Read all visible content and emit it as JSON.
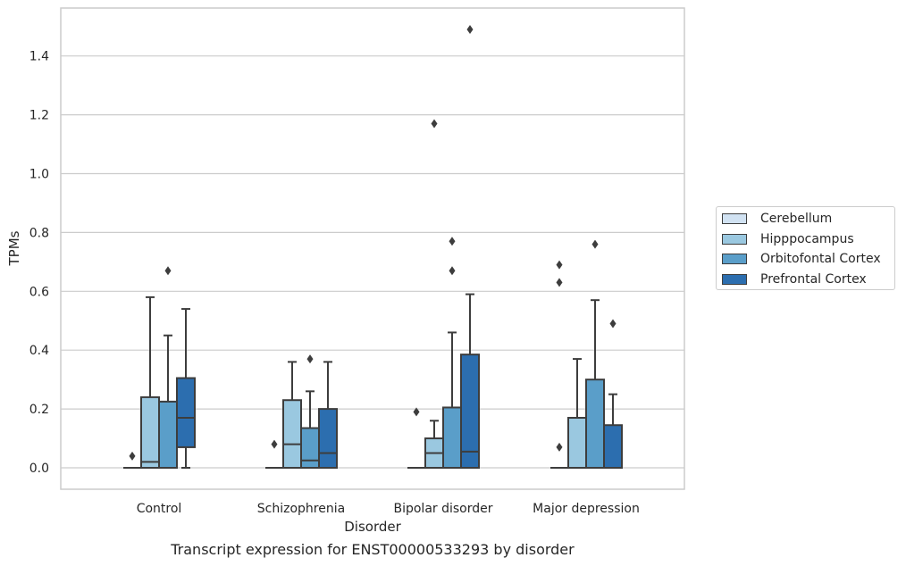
{
  "chart_data": {
    "type": "box",
    "title": "Transcript expression for ENST00000533293 by disorder",
    "xlabel": "Disorder",
    "ylabel": "TPMs",
    "ylim": [
      -0.07,
      1.57
    ],
    "yticks": [
      "0.0",
      "0.2",
      "0.4",
      "0.6",
      "0.8",
      "1.0",
      "1.2",
      "1.4"
    ],
    "grid": true,
    "legend_position": "right",
    "categories": [
      "Control",
      "Schizophrenia",
      "Bipolar disorder",
      "Major depression"
    ],
    "series": [
      {
        "name": "Cerebellum",
        "color": "#d1e2f2",
        "boxes": [
          {
            "min": 0.0,
            "q1": 0.0,
            "median": 0.0,
            "q3": 0.0,
            "max": 0.0,
            "outliers": [
              0.04
            ]
          },
          {
            "min": 0.0,
            "q1": 0.0,
            "median": 0.0,
            "q3": 0.0,
            "max": 0.0,
            "outliers": [
              0.08
            ]
          },
          {
            "min": 0.0,
            "q1": 0.0,
            "median": 0.0,
            "q3": 0.0,
            "max": 0.0,
            "outliers": [
              0.19
            ]
          },
          {
            "min": 0.0,
            "q1": 0.0,
            "median": 0.0,
            "q3": 0.0,
            "max": 0.0,
            "outliers": [
              0.07,
              0.63,
              0.69
            ]
          }
        ]
      },
      {
        "name": "Hipppocampus",
        "color": "#9ac8e0",
        "boxes": [
          {
            "min": 0.0,
            "q1": 0.0,
            "median": 0.02,
            "q3": 0.24,
            "max": 0.58,
            "outliers": []
          },
          {
            "min": 0.0,
            "q1": 0.0,
            "median": 0.08,
            "q3": 0.23,
            "max": 0.36,
            "outliers": []
          },
          {
            "min": 0.0,
            "q1": 0.0,
            "median": 0.05,
            "q3": 0.1,
            "max": 0.16,
            "outliers": [
              1.17
            ]
          },
          {
            "min": 0.0,
            "q1": 0.0,
            "median": 0.0,
            "q3": 0.17,
            "max": 0.37,
            "outliers": []
          }
        ]
      },
      {
        "name": "Orbitofontal Cortex",
        "color": "#5a9ec9",
        "boxes": [
          {
            "min": 0.0,
            "q1": 0.0,
            "median": 0.0,
            "q3": 0.225,
            "max": 0.45,
            "outliers": [
              0.67
            ]
          },
          {
            "min": 0.0,
            "q1": 0.0,
            "median": 0.025,
            "q3": 0.135,
            "max": 0.26,
            "outliers": [
              0.37
            ]
          },
          {
            "min": 0.0,
            "q1": 0.0,
            "median": 0.0,
            "q3": 0.205,
            "max": 0.46,
            "outliers": [
              0.67,
              0.77
            ]
          },
          {
            "min": 0.0,
            "q1": 0.0,
            "median": 0.0,
            "q3": 0.3,
            "max": 0.57,
            "outliers": [
              0.76
            ]
          }
        ]
      },
      {
        "name": "Prefrontal Cortex",
        "color": "#2c6eaf",
        "boxes": [
          {
            "min": 0.0,
            "q1": 0.07,
            "median": 0.17,
            "q3": 0.305,
            "max": 0.54,
            "outliers": []
          },
          {
            "min": 0.0,
            "q1": 0.0,
            "median": 0.05,
            "q3": 0.2,
            "max": 0.36,
            "outliers": []
          },
          {
            "min": 0.0,
            "q1": 0.0,
            "median": 0.055,
            "q3": 0.385,
            "max": 0.59,
            "outliers": [
              1.49
            ]
          },
          {
            "min": 0.0,
            "q1": 0.0,
            "median": 0.0,
            "q3": 0.145,
            "max": 0.25,
            "outliers": [
              0.49
            ]
          }
        ]
      }
    ]
  }
}
